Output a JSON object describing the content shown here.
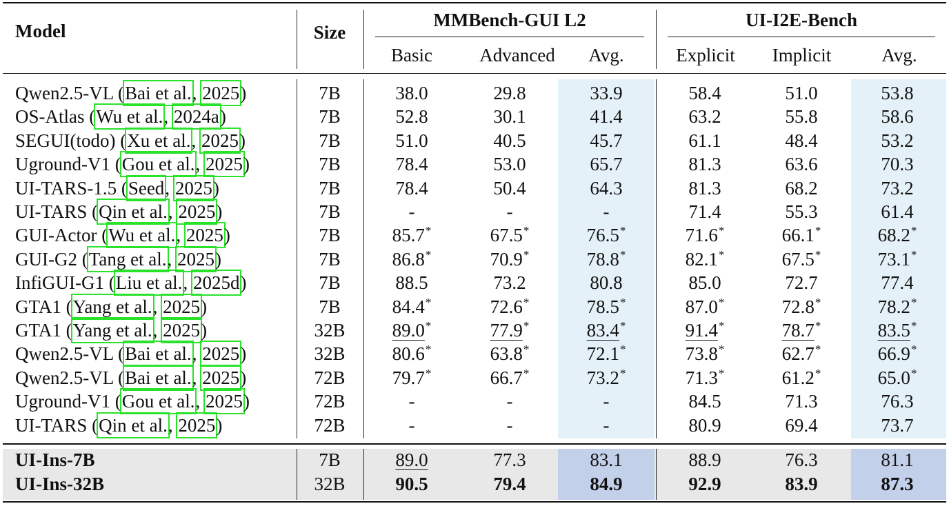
{
  "header": {
    "model": "Model",
    "size": "Size",
    "groups": [
      "MMBench-GUI L2",
      "UI-I2E-Bench"
    ],
    "columns": [
      "Basic",
      "Advanced",
      "Avg.",
      "Explicit",
      "Implicit",
      "Avg."
    ]
  },
  "rows": [
    {
      "name": "Qwen2.5-VL",
      "cite_prefix": " (",
      "cite_author": "Bai et al.",
      "cite_sep": ", ",
      "cite_year": "2025",
      "cite_suffix": ")",
      "size": "7B",
      "vals": [
        "38.0",
        "29.8",
        "33.9",
        "58.4",
        "51.0",
        "53.8"
      ],
      "stars": [
        false,
        false,
        false,
        false,
        false,
        false
      ],
      "underline": [
        false,
        false,
        false,
        false,
        false,
        false
      ]
    },
    {
      "name": "OS-Atlas",
      "cite_prefix": " (",
      "cite_author": "Wu et al.",
      "cite_sep": ", ",
      "cite_year": "2024a",
      "cite_suffix": ")",
      "size": "7B",
      "vals": [
        "52.8",
        "30.1",
        "41.4",
        "63.2",
        "55.8",
        "58.6"
      ],
      "stars": [
        false,
        false,
        false,
        false,
        false,
        false
      ],
      "underline": [
        false,
        false,
        false,
        false,
        false,
        false
      ]
    },
    {
      "name": "SEGUI(todo)",
      "cite_prefix": " (",
      "cite_author": "Xu et al.",
      "cite_sep": ", ",
      "cite_year": "2025",
      "cite_suffix": ")",
      "size": "7B",
      "vals": [
        "51.0",
        "40.5",
        "45.7",
        "61.1",
        "48.4",
        "53.2"
      ],
      "stars": [
        false,
        false,
        false,
        false,
        false,
        false
      ],
      "underline": [
        false,
        false,
        false,
        false,
        false,
        false
      ]
    },
    {
      "name": "Uground-V1",
      "cite_prefix": " (",
      "cite_author": "Gou et al.",
      "cite_sep": ", ",
      "cite_year": "2025",
      "cite_suffix": ")",
      "size": "7B",
      "vals": [
        "78.4",
        "53.0",
        "65.7",
        "81.3",
        "63.6",
        "70.3"
      ],
      "stars": [
        false,
        false,
        false,
        false,
        false,
        false
      ],
      "underline": [
        false,
        false,
        false,
        false,
        false,
        false
      ]
    },
    {
      "name": "UI-TARS-1.5",
      "cite_prefix": " (",
      "cite_author": "Seed",
      "cite_sep": ", ",
      "cite_year": "2025",
      "cite_suffix": ")",
      "size": "7B",
      "vals": [
        "78.4",
        "50.4",
        "64.3",
        "81.3",
        "68.2",
        "73.2"
      ],
      "stars": [
        false,
        false,
        false,
        false,
        false,
        false
      ],
      "underline": [
        false,
        false,
        false,
        false,
        false,
        false
      ]
    },
    {
      "name": "UI-TARS",
      "cite_prefix": " (",
      "cite_author": "Qin et al.",
      "cite_sep": ", ",
      "cite_year": "2025",
      "cite_suffix": ")",
      "size": "7B",
      "vals": [
        "-",
        "-",
        "-",
        "71.4",
        "55.3",
        "61.4"
      ],
      "stars": [
        false,
        false,
        false,
        false,
        false,
        false
      ],
      "underline": [
        false,
        false,
        false,
        false,
        false,
        false
      ]
    },
    {
      "name": "GUI-Actor",
      "cite_prefix": " (",
      "cite_author": "Wu et al.",
      "cite_sep": ", ",
      "cite_year": "2025",
      "cite_suffix": ")",
      "size": "7B",
      "vals": [
        "85.7",
        "67.5",
        "76.5",
        "71.6",
        "66.1",
        "68.2"
      ],
      "stars": [
        true,
        true,
        true,
        true,
        true,
        true
      ],
      "underline": [
        false,
        false,
        false,
        false,
        false,
        false
      ]
    },
    {
      "name": "GUI-G2",
      "cite_prefix": " (",
      "cite_author": "Tang et al.",
      "cite_sep": ", ",
      "cite_year": "2025",
      "cite_suffix": ")",
      "size": "7B",
      "vals": [
        "86.8",
        "70.9",
        "78.8",
        "82.1",
        "67.5",
        "73.1"
      ],
      "stars": [
        true,
        true,
        true,
        true,
        true,
        true
      ],
      "underline": [
        false,
        false,
        false,
        false,
        false,
        false
      ]
    },
    {
      "name": "InfiGUI-G1",
      "cite_prefix": " (",
      "cite_author": "Liu et al.",
      "cite_sep": ", ",
      "cite_year": "2025d",
      "cite_suffix": ")",
      "size": "7B",
      "vals": [
        "88.5",
        "73.2",
        "80.8",
        "85.0",
        "72.7",
        "77.4"
      ],
      "stars": [
        false,
        false,
        false,
        false,
        false,
        false
      ],
      "underline": [
        false,
        false,
        false,
        false,
        false,
        false
      ]
    },
    {
      "name": "GTA1",
      "cite_prefix": " (",
      "cite_author": "Yang et al.",
      "cite_sep": ", ",
      "cite_year": "2025",
      "cite_suffix": ")",
      "size": "7B",
      "vals": [
        "84.4",
        "72.6",
        "78.5",
        "87.0",
        "72.8",
        "78.2"
      ],
      "stars": [
        true,
        true,
        true,
        true,
        true,
        true
      ],
      "underline": [
        false,
        false,
        false,
        false,
        false,
        false
      ]
    },
    {
      "name": "GTA1",
      "cite_prefix": " (",
      "cite_author": "Yang et al.",
      "cite_sep": ", ",
      "cite_year": "2025",
      "cite_suffix": ")",
      "size": "32B",
      "vals": [
        "89.0",
        "77.9",
        "83.4",
        "91.4",
        "78.7",
        "83.5"
      ],
      "stars": [
        true,
        true,
        true,
        true,
        true,
        true
      ],
      "underline": [
        true,
        true,
        true,
        true,
        true,
        true
      ]
    },
    {
      "name": "Qwen2.5-VL",
      "cite_prefix": " (",
      "cite_author": "Bai et al.",
      "cite_sep": ", ",
      "cite_year": "2025",
      "cite_suffix": ")",
      "size": "32B",
      "vals": [
        "80.6",
        "63.8",
        "72.1",
        "73.8",
        "62.7",
        "66.9"
      ],
      "stars": [
        true,
        true,
        true,
        true,
        true,
        true
      ],
      "underline": [
        false,
        false,
        false,
        false,
        false,
        false
      ]
    },
    {
      "name": "Qwen2.5-VL",
      "cite_prefix": " (",
      "cite_author": "Bai et al.",
      "cite_sep": ", ",
      "cite_year": "2025",
      "cite_suffix": ")",
      "size": "72B",
      "vals": [
        "79.7",
        "66.7",
        "73.2",
        "71.3",
        "61.2",
        "65.0"
      ],
      "stars": [
        true,
        true,
        true,
        true,
        true,
        true
      ],
      "underline": [
        false,
        false,
        false,
        false,
        false,
        false
      ]
    },
    {
      "name": "Uground-V1",
      "cite_prefix": " (",
      "cite_author": "Gou et al.",
      "cite_sep": ", ",
      "cite_year": "2025",
      "cite_suffix": ")",
      "size": "72B",
      "vals": [
        "-",
        "-",
        "-",
        "84.5",
        "71.3",
        "76.3"
      ],
      "stars": [
        false,
        false,
        false,
        false,
        false,
        false
      ],
      "underline": [
        false,
        false,
        false,
        false,
        false,
        false
      ]
    },
    {
      "name": "UI-TARS",
      "cite_prefix": " (",
      "cite_author": "Qin et al.",
      "cite_sep": ", ",
      "cite_year": "2025",
      "cite_suffix": ")",
      "size": "72B",
      "vals": [
        "-",
        "-",
        "-",
        "80.9",
        "69.4",
        "73.7"
      ],
      "stars": [
        false,
        false,
        false,
        false,
        false,
        false
      ],
      "underline": [
        false,
        false,
        false,
        false,
        false,
        false
      ]
    }
  ],
  "ours": [
    {
      "name": "UI-Ins-7B",
      "size": "7B",
      "vals": [
        "89.0",
        "77.3",
        "83.1",
        "88.9",
        "76.3",
        "81.1"
      ],
      "bold": [
        false,
        false,
        false,
        false,
        false,
        false
      ],
      "underline": [
        true,
        false,
        false,
        false,
        false,
        false
      ]
    },
    {
      "name": "UI-Ins-32B",
      "size": "32B",
      "vals": [
        "90.5",
        "79.4",
        "84.9",
        "92.9",
        "83.9",
        "87.3"
      ],
      "bold": [
        true,
        true,
        true,
        true,
        true,
        true
      ],
      "underline": [
        false,
        false,
        false,
        false,
        false,
        false
      ]
    }
  ],
  "colors": {
    "avg_shade": "#e5f1f8",
    "ours_shade": "#e8e8e8",
    "ours_avg_shade": "#c3d0ea",
    "citation_box": "#29e22a"
  }
}
